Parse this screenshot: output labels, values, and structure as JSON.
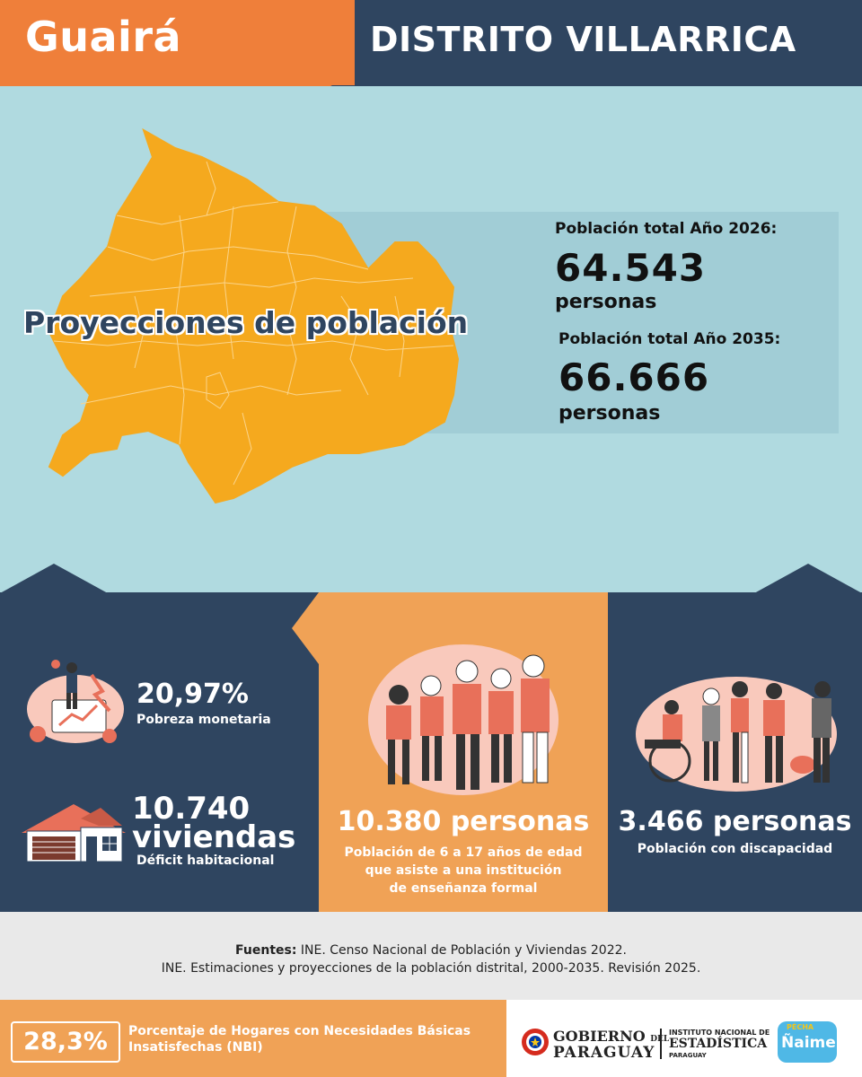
{
  "header": {
    "department": "Guairá",
    "district": "DISTRITO VILLARRICA"
  },
  "map_section": {
    "title": "Proyecciones de población",
    "population_2026": {
      "label": "Población total Año 2026:",
      "value": "64.543",
      "unit": "personas"
    },
    "population_2035": {
      "label": "Población total Año 2035:",
      "value": "66.666",
      "unit": "personas"
    }
  },
  "stats": {
    "poverty": {
      "value": "20,97%",
      "label": "Pobreza monetaria"
    },
    "housing": {
      "value_line1": "10.740",
      "value_line2": "viviendas",
      "label": "Déficit habitacional"
    },
    "education": {
      "value": "10.380 personas",
      "label_line1": "Población de 6 a 17 años de edad",
      "label_line2": "que asiste a una institución",
      "label_line3": "de enseñanza formal"
    },
    "disability": {
      "value": "3.466 personas",
      "label": "Población con discapacidad"
    }
  },
  "sources": {
    "prefix": "Fuentes:",
    "line1": " INE. Censo Nacional de Población y Viviendas 2022.",
    "line2": "INE. Estimaciones y proyecciones de la población distrital, 2000-2035.   Revisión 2025."
  },
  "footer": {
    "nbi_value": "28,3%",
    "nbi_text": "Porcentaje de Hogares con Necesidades Básicas Insatisfechas (NBI)",
    "gov_line1": "GOBIERNO",
    "gov_del": "DEL",
    "gov_line2": "PARAGUAY",
    "ine_line1": "INSTITUTO NACIONAL DE",
    "ine_line2": "ESTADÍSTICA",
    "ine_line3": "PARAGUAY",
    "brand_top": "PÉCHA",
    "brand_main": "Ñaime!"
  },
  "colors": {
    "orange": "#ef7f3a",
    "light_orange": "#f0a256",
    "navy": "#2f4560",
    "sky": "#b0dae0",
    "map_yellow": "#f5a91e",
    "salmon": "#e8705a"
  }
}
